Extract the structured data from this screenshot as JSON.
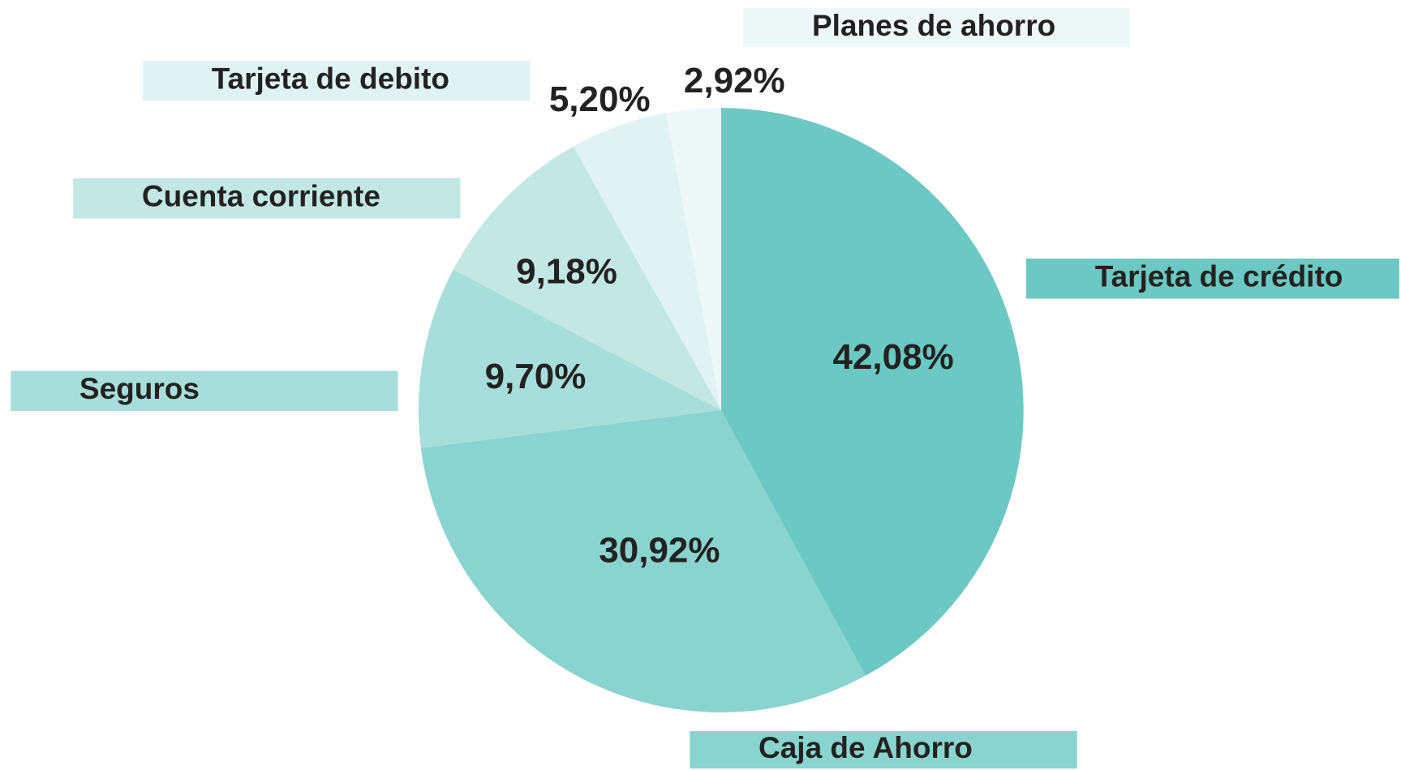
{
  "chart_data": {
    "type": "pie",
    "categories": [
      "Tarjeta de crédito",
      "Caja de Ahorro",
      "Seguros",
      "Cuenta corriente",
      "Tarjeta de debito",
      "Planes de ahorro"
    ],
    "values": [
      42.08,
      30.92,
      9.7,
      9.18,
      5.2,
      2.92
    ],
    "value_labels": [
      "42,08%",
      "30,92%",
      "9,70%",
      "9,18%",
      "5,20%",
      "2,92%"
    ],
    "colors": [
      "#6cc8c2",
      "#8ad4cf",
      "#a8ded9",
      "#c3e8e4",
      "#e0f3f2",
      "#eff8f8"
    ]
  }
}
